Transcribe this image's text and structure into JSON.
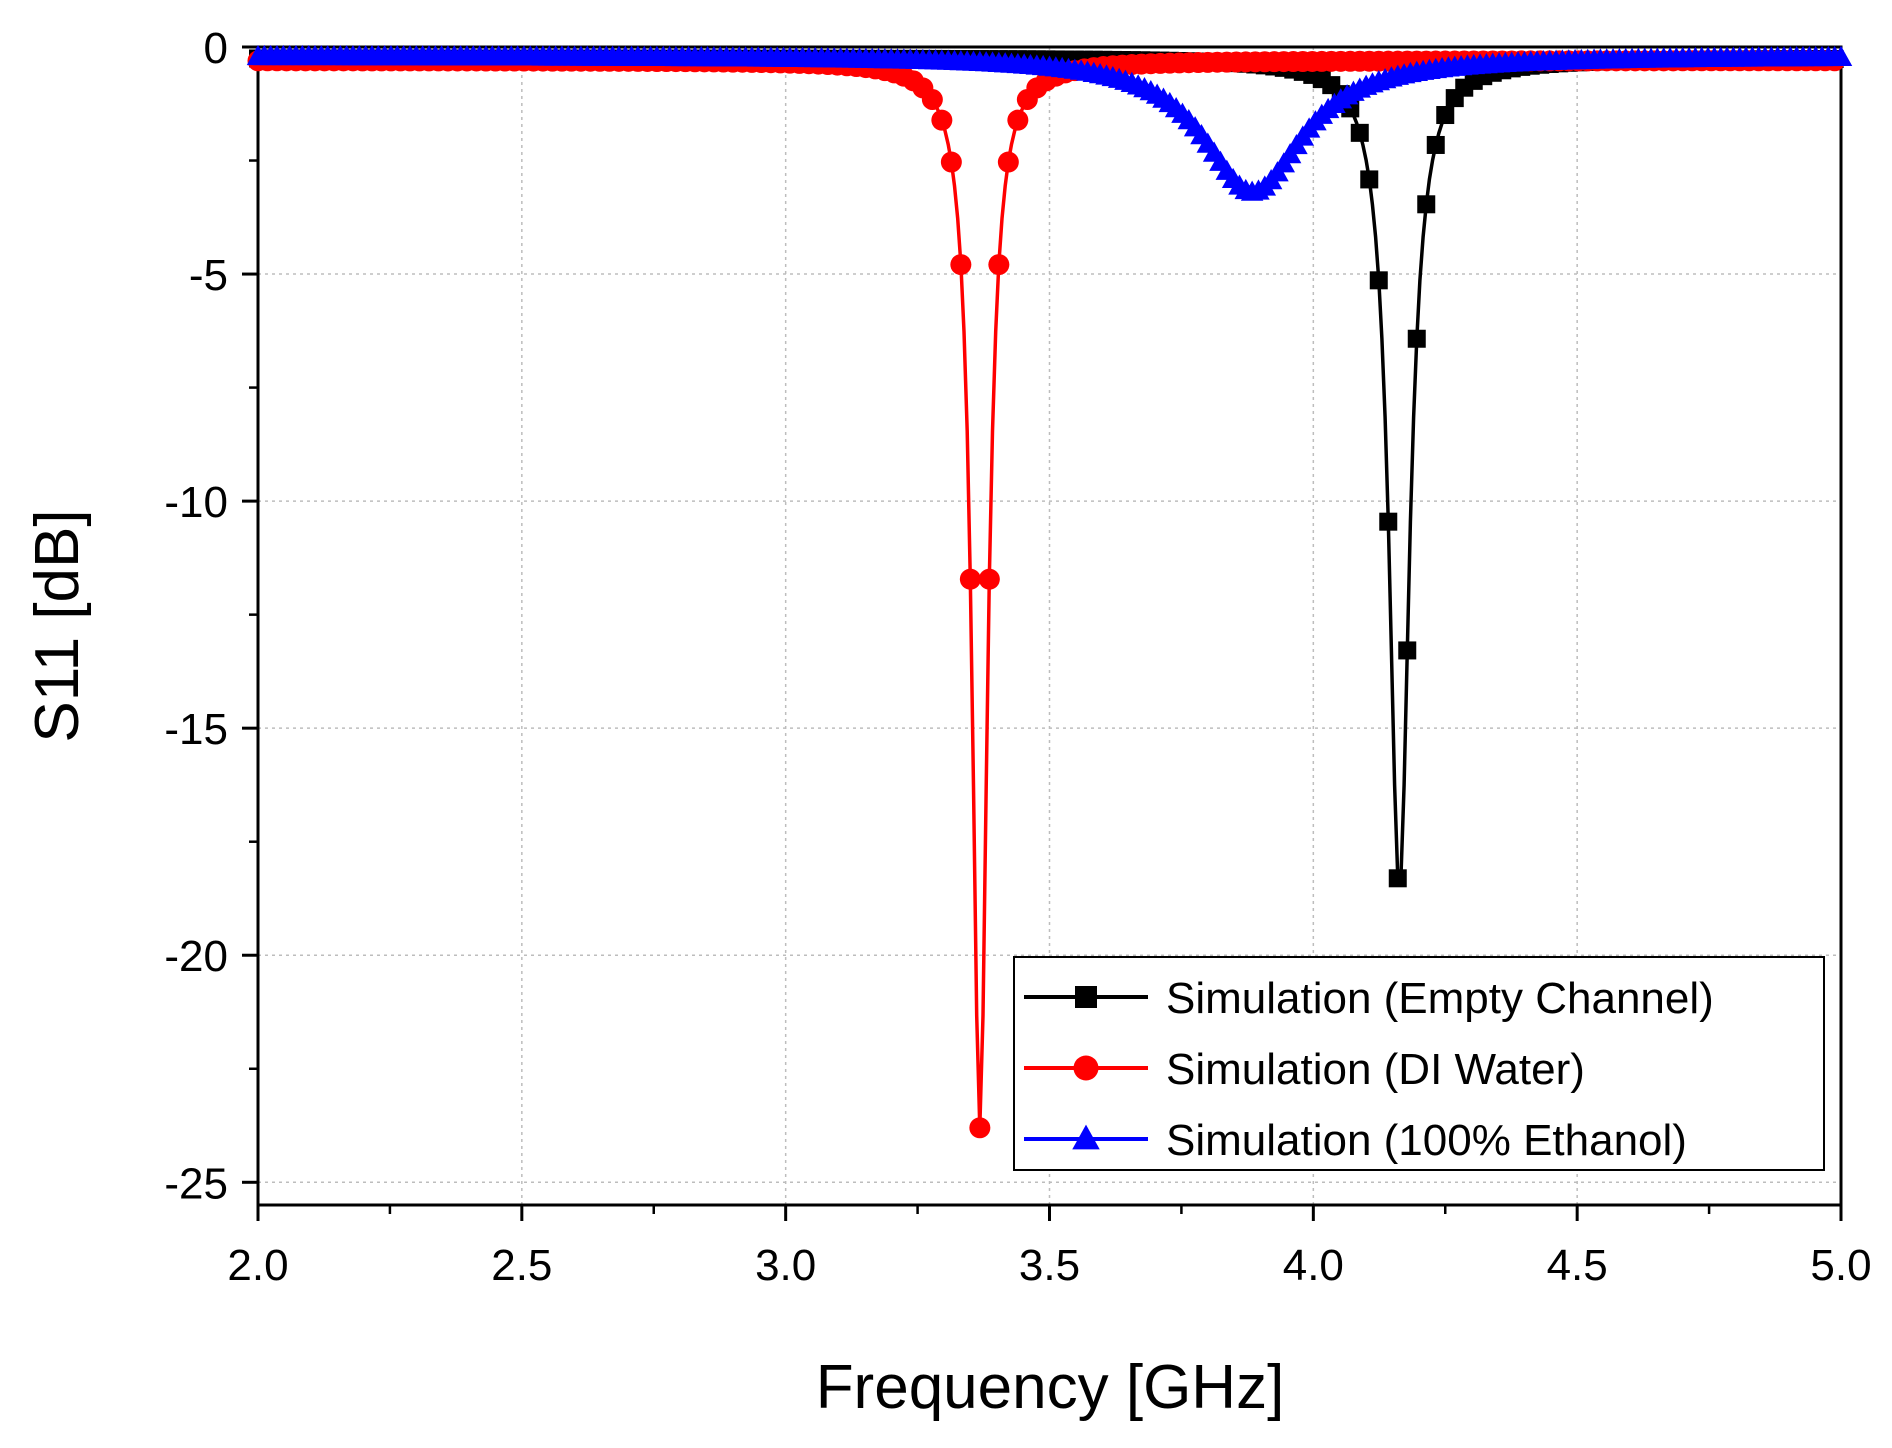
{
  "chart_data": {
    "type": "line",
    "xlabel": "Frequency [GHz]",
    "ylabel": "S11 [dB]",
    "xlim": [
      2.0,
      5.0
    ],
    "ylim": [
      -25.5,
      0
    ],
    "xticks": [
      "2.0",
      "2.5",
      "3.0",
      "3.5",
      "4.0",
      "4.5",
      "5.0"
    ],
    "xtick_values": [
      2.0,
      2.5,
      3.0,
      3.5,
      4.0,
      4.5,
      5.0
    ],
    "yticks": [
      "0",
      "-5",
      "-10",
      "-15",
      "-20",
      "-25"
    ],
    "ytick_values": [
      0,
      -5,
      -10,
      -15,
      -20,
      -25
    ],
    "grid": true,
    "legend_position": "bottom-right",
    "series": [
      {
        "name": "Simulation (Empty Channel)",
        "color": "#000000",
        "marker": "square",
        "f0": 4.163,
        "peak": -18.6,
        "width": 0.0235,
        "base": -0.25,
        "x_range": [
          2.0,
          5.0
        ]
      },
      {
        "name": "Simulation (DI Water)",
        "color": "#ff0000",
        "marker": "circle",
        "f0": 3.368,
        "peak": -23.8,
        "width": 0.0175,
        "base": -0.3,
        "x_range": [
          2.0,
          5.0
        ]
      },
      {
        "name": "Simulation (100% Ethanol)",
        "color": "#0000ff",
        "marker": "triangle",
        "f0": 3.885,
        "peak": -3.2,
        "width": 0.115,
        "base": -0.2,
        "x_range": [
          2.0,
          5.0
        ]
      }
    ]
  }
}
